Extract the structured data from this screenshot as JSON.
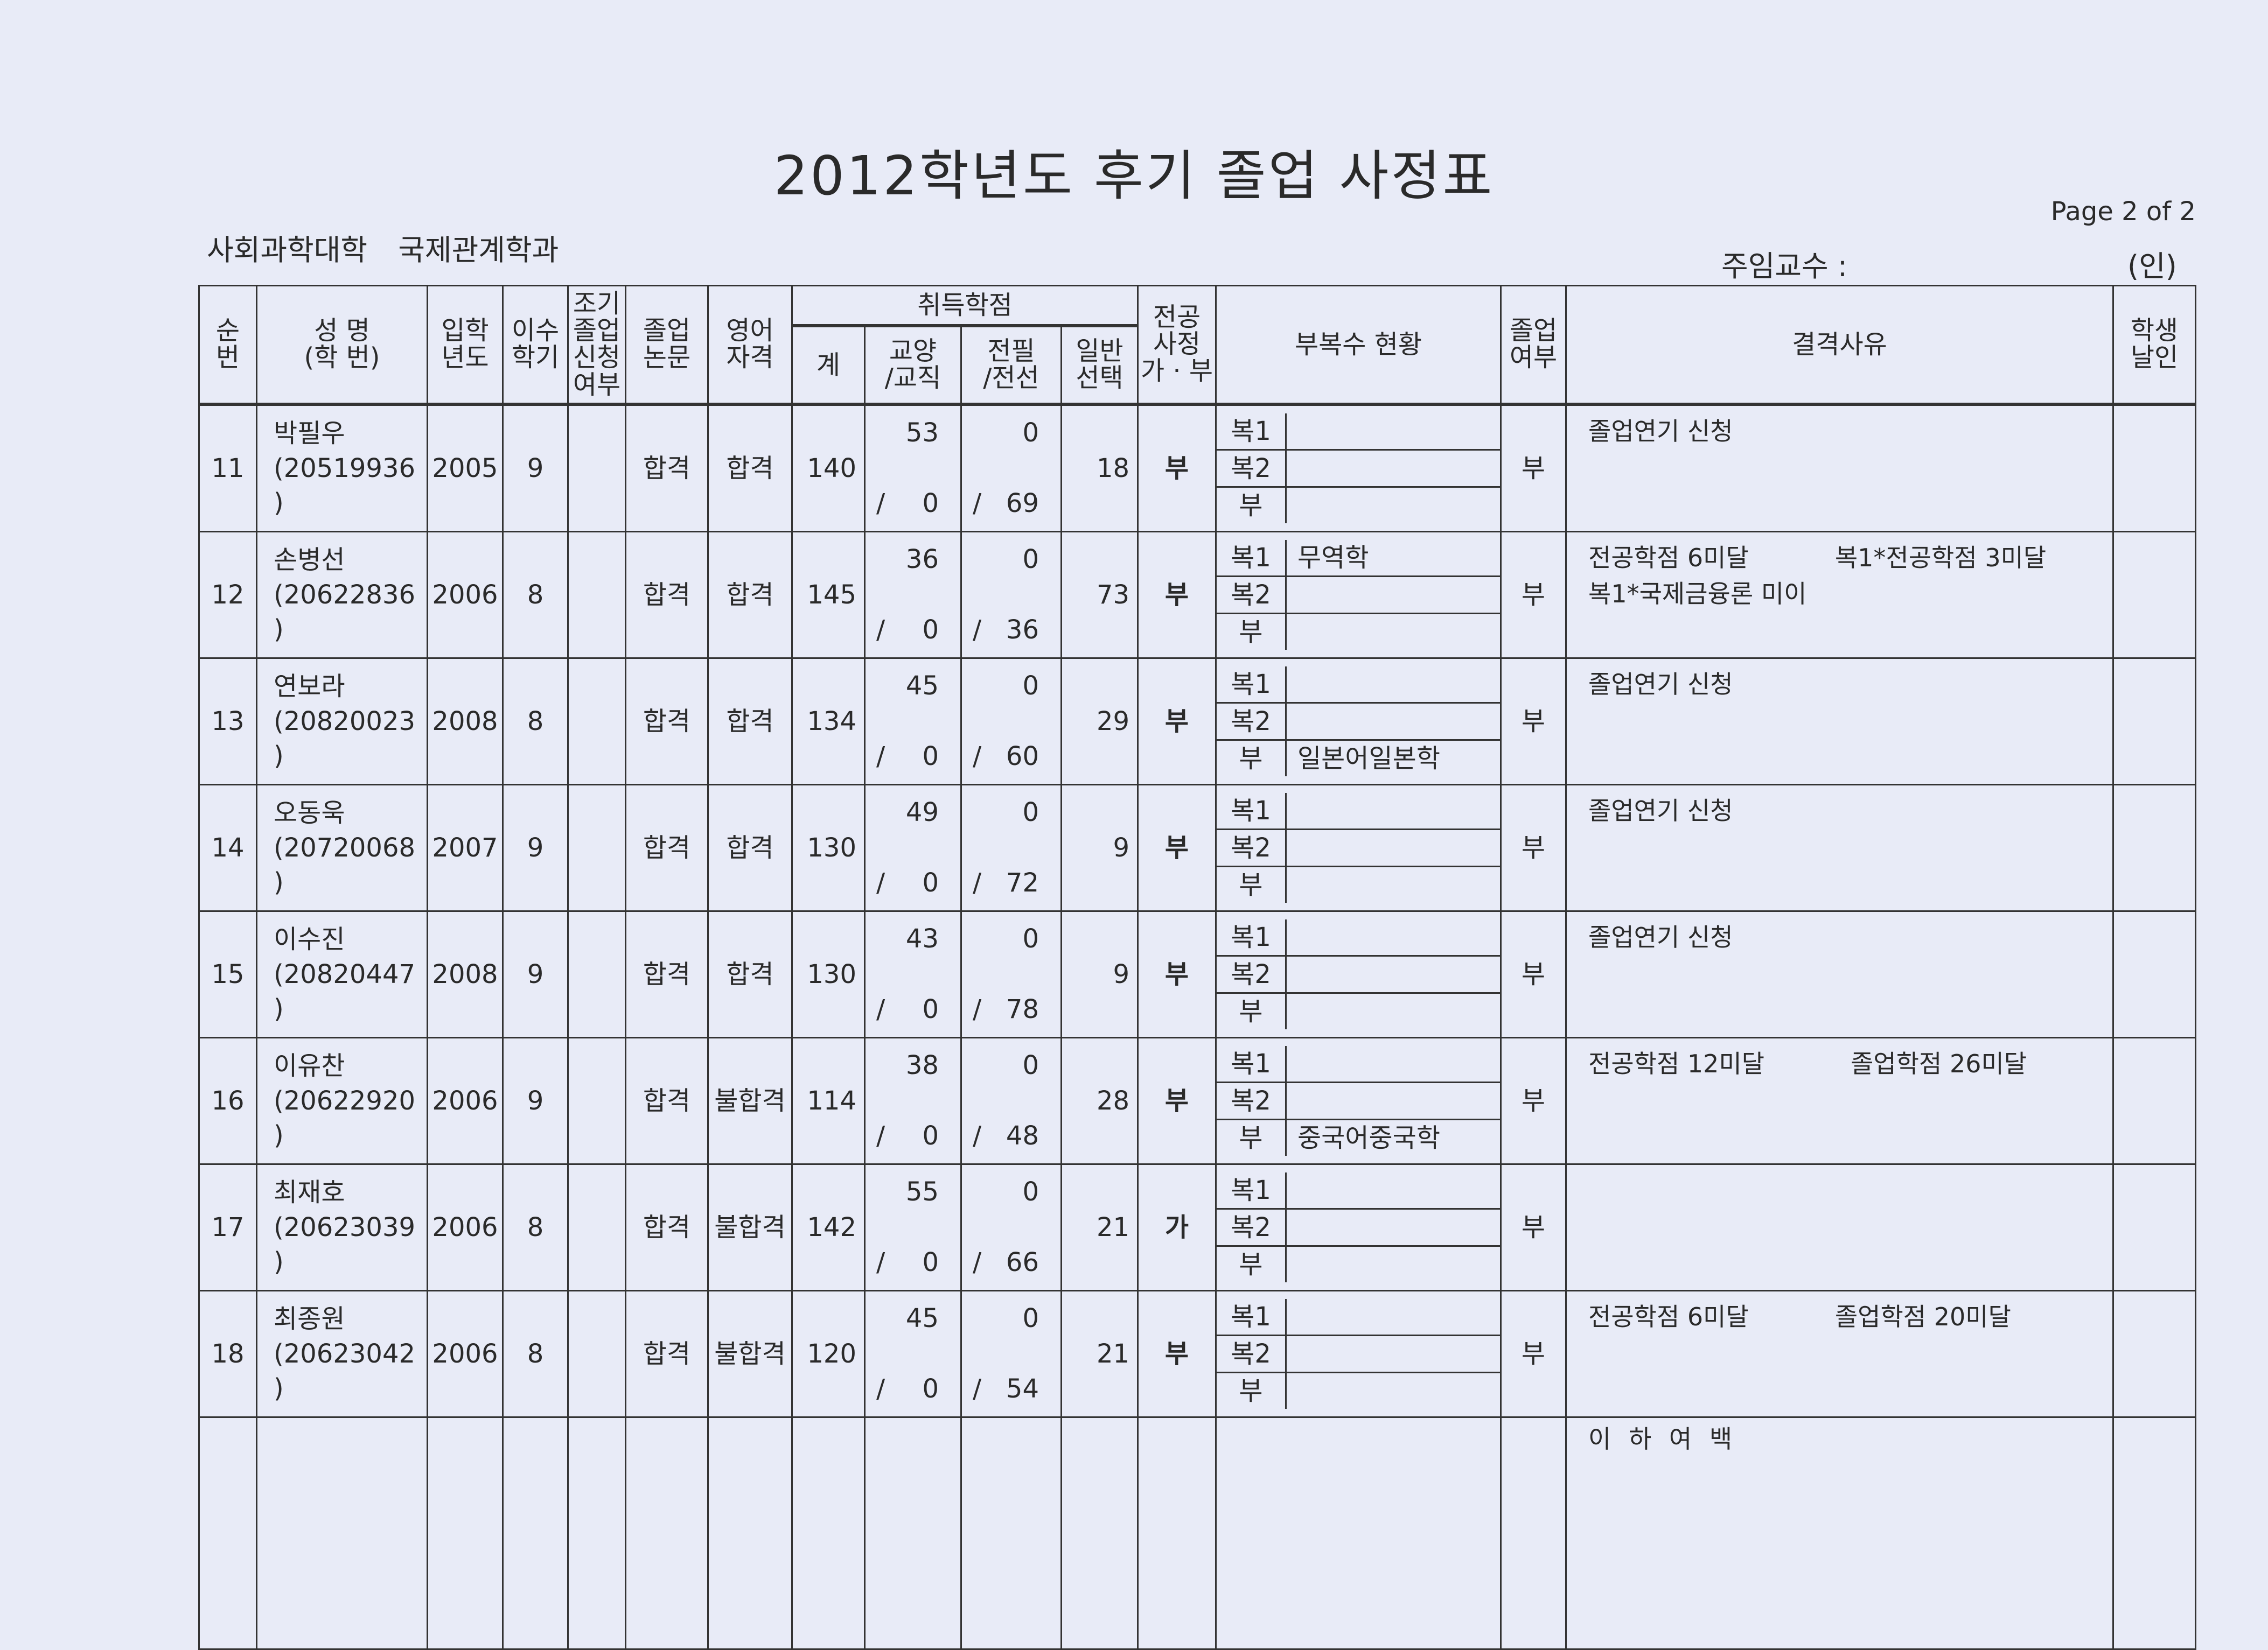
{
  "title": "2012학년도 후기  졸업 사정표",
  "college": "사회과학대학  국제관계학과",
  "page_label": "Page 2 of 2",
  "professor_label": "주임교수 :",
  "seal_label": "(인)",
  "headers": {
    "no": [
      "순",
      "번"
    ],
    "name": [
      "성  명",
      "(학  번)"
    ],
    "entry_year": [
      "입학",
      "년도"
    ],
    "semesters": [
      "이수",
      "학기"
    ],
    "early": [
      "조기",
      "졸업",
      "신청",
      "여부"
    ],
    "thesis": [
      "졸업",
      "논문"
    ],
    "english": [
      "영어",
      "자격"
    ],
    "credits": "취득학점",
    "total": "계",
    "liberal": [
      "교양",
      "/교직"
    ],
    "major_req": [
      "전필",
      "/전선"
    ],
    "general": [
      "일반",
      "선택"
    ],
    "major_review": [
      "전공",
      "사정",
      "가 · 부"
    ],
    "minor": "부복수  현황",
    "graduate": [
      "졸업",
      "여부"
    ],
    "reason": "결격사유",
    "student_seal": [
      "학생",
      "날인"
    ]
  },
  "labels": {
    "dual1": "복1",
    "dual2": "복2",
    "minor": "부",
    "slash": "/"
  },
  "rows": [
    {
      "no": "11",
      "name": "박필우",
      "id": "(20519936   )",
      "year": "2005",
      "sem": "9",
      "early": "",
      "thesis": "합격",
      "english": "합격",
      "total": "140",
      "lib_top": "53",
      "lib_bot": "0",
      "maj_top": "0",
      "maj_bot": "69",
      "gen": "18",
      "review": "부",
      "dual1": "",
      "dual2": "",
      "minor": "",
      "graduate": "부",
      "reasons": [
        [
          "졸업연기 신청"
        ]
      ]
    },
    {
      "no": "12",
      "name": "손병선",
      "id": "(20622836   )",
      "year": "2006",
      "sem": "8",
      "early": "",
      "thesis": "합격",
      "english": "합격",
      "total": "145",
      "lib_top": "36",
      "lib_bot": "0",
      "maj_top": "0",
      "maj_bot": "36",
      "gen": "73",
      "review": "부",
      "dual1": "무역학",
      "dual2": "",
      "minor": "",
      "graduate": "부",
      "reasons": [
        [
          "전공학점 6미달",
          "복1*전공학점 3미달"
        ],
        [
          "복1*국제금융론 미이"
        ]
      ]
    },
    {
      "no": "13",
      "name": "연보라",
      "id": "(20820023   )",
      "year": "2008",
      "sem": "8",
      "early": "",
      "thesis": "합격",
      "english": "합격",
      "total": "134",
      "lib_top": "45",
      "lib_bot": "0",
      "maj_top": "0",
      "maj_bot": "60",
      "gen": "29",
      "review": "부",
      "dual1": "",
      "dual2": "",
      "minor": "일본어일본학",
      "graduate": "부",
      "reasons": [
        [
          "졸업연기 신청"
        ]
      ]
    },
    {
      "no": "14",
      "name": "오동욱",
      "id": "(20720068   )",
      "year": "2007",
      "sem": "9",
      "early": "",
      "thesis": "합격",
      "english": "합격",
      "total": "130",
      "lib_top": "49",
      "lib_bot": "0",
      "maj_top": "0",
      "maj_bot": "72",
      "gen": "9",
      "review": "부",
      "dual1": "",
      "dual2": "",
      "minor": "",
      "graduate": "부",
      "reasons": [
        [
          "졸업연기 신청"
        ]
      ]
    },
    {
      "no": "15",
      "name": "이수진",
      "id": "(20820447   )",
      "year": "2008",
      "sem": "9",
      "early": "",
      "thesis": "합격",
      "english": "합격",
      "total": "130",
      "lib_top": "43",
      "lib_bot": "0",
      "maj_top": "0",
      "maj_bot": "78",
      "gen": "9",
      "review": "부",
      "dual1": "",
      "dual2": "",
      "minor": "",
      "graduate": "부",
      "reasons": [
        [
          "졸업연기 신청"
        ]
      ]
    },
    {
      "no": "16",
      "name": "이유찬",
      "id": "(20622920   )",
      "year": "2006",
      "sem": "9",
      "early": "",
      "thesis": "합격",
      "english": "불합격",
      "total": "114",
      "lib_top": "38",
      "lib_bot": "0",
      "maj_top": "0",
      "maj_bot": "48",
      "gen": "28",
      "review": "부",
      "dual1": "",
      "dual2": "",
      "minor": "중국어중국학",
      "graduate": "부",
      "reasons": [
        [
          "전공학점 12미달",
          "졸업학점 26미달"
        ]
      ]
    },
    {
      "no": "17",
      "name": "최재호",
      "id": "(20623039   )",
      "year": "2006",
      "sem": "8",
      "early": "",
      "thesis": "합격",
      "english": "불합격",
      "total": "142",
      "lib_top": "55",
      "lib_bot": "0",
      "maj_top": "0",
      "maj_bot": "66",
      "gen": "21",
      "review": "가",
      "dual1": "",
      "dual2": "",
      "minor": "",
      "graduate": "부",
      "reasons": []
    },
    {
      "no": "18",
      "name": "최종원",
      "id": "(20623042   )",
      "year": "2006",
      "sem": "8",
      "early": "",
      "thesis": "합격",
      "english": "불합격",
      "total": "120",
      "lib_top": "45",
      "lib_bot": "0",
      "maj_top": "0",
      "maj_bot": "54",
      "gen": "21",
      "review": "부",
      "dual1": "",
      "dual2": "",
      "minor": "",
      "graduate": "부",
      "reasons": [
        [
          "전공학점 6미달",
          "졸업학점 20미달"
        ]
      ]
    }
  ],
  "blank_remark": "이 하 여 백"
}
